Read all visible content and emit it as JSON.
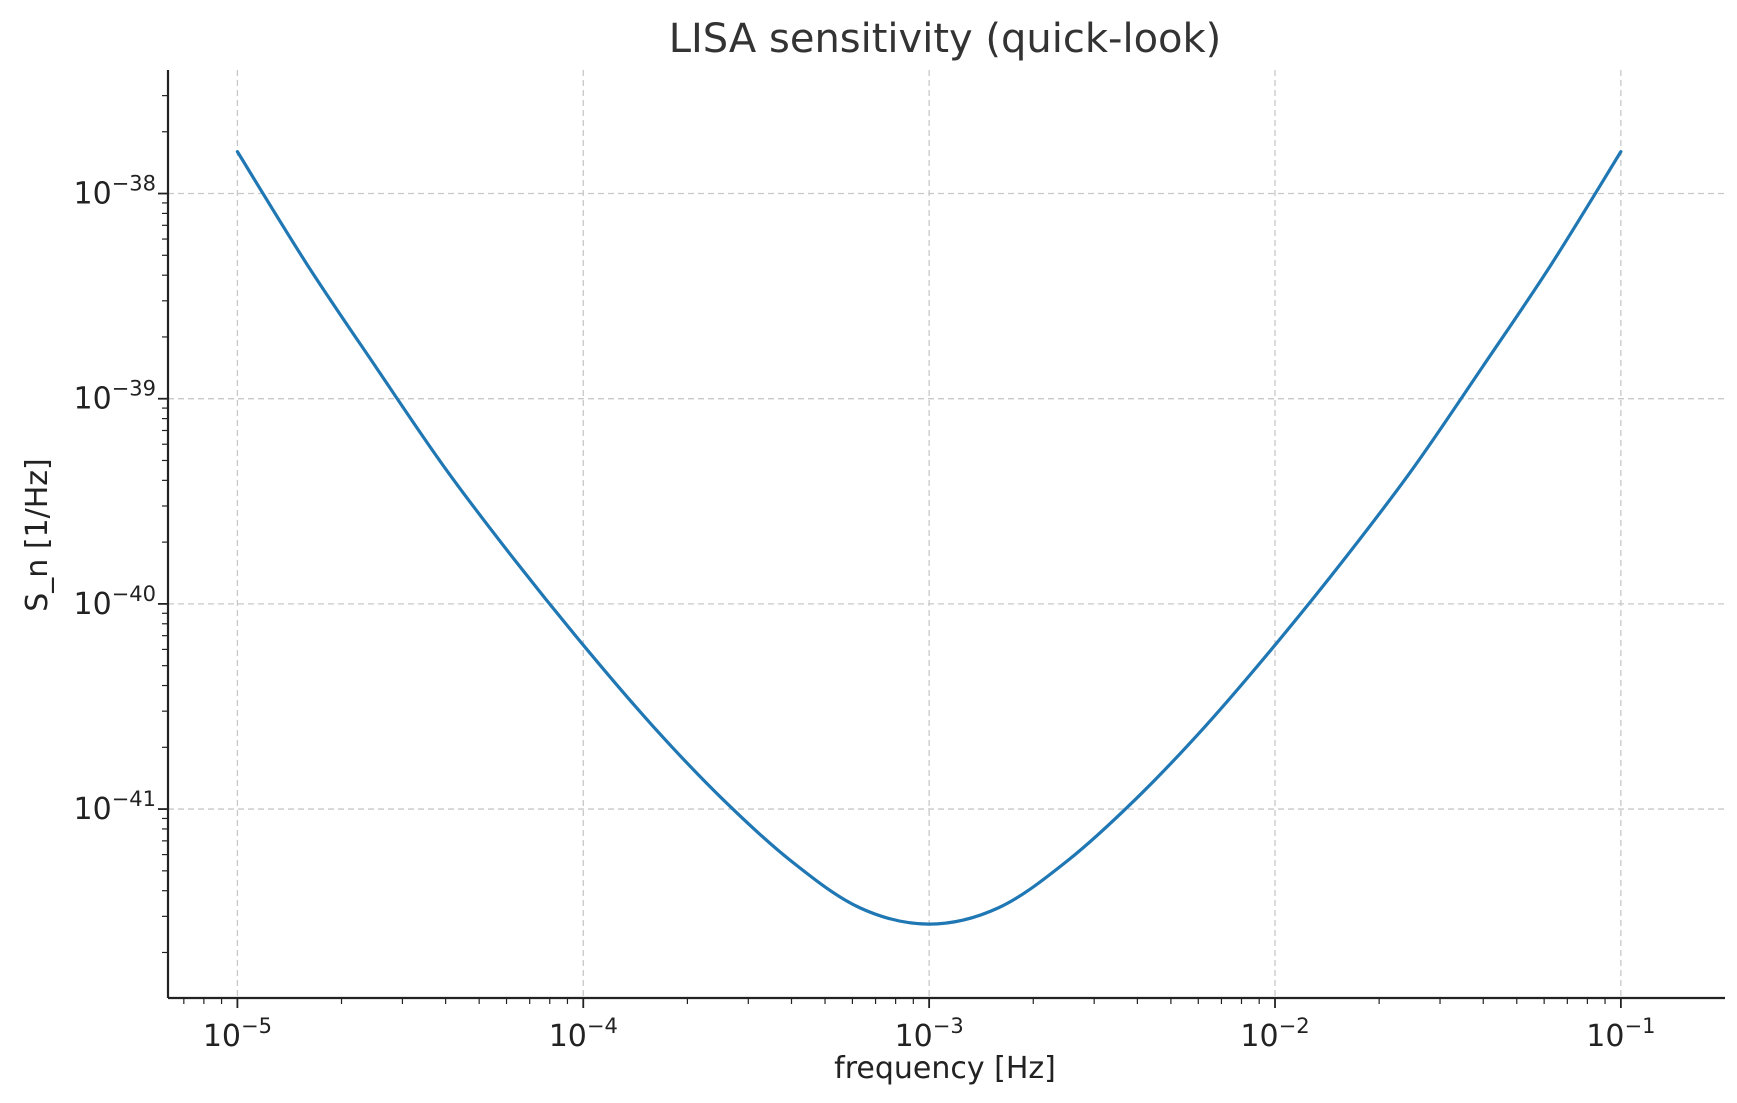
{
  "chart_data": {
    "type": "line",
    "title": "LISA sensitivity (quick-look)",
    "xlabel": "frequency [Hz]",
    "ylabel": "S_n [1/Hz]",
    "xscale": "log",
    "yscale": "log",
    "xlim": [
      6.3e-06,
      0.2
    ],
    "ylim": [
      1.2e-42,
      4e-38
    ],
    "grid": true,
    "x_ticks": [
      {
        "value": 1e-05,
        "base": "10",
        "exp": "−5"
      },
      {
        "value": 0.0001,
        "base": "10",
        "exp": "−4"
      },
      {
        "value": 0.001,
        "base": "10",
        "exp": "−3"
      },
      {
        "value": 0.01,
        "base": "10",
        "exp": "−2"
      },
      {
        "value": 0.1,
        "base": "10",
        "exp": "−1"
      }
    ],
    "y_ticks": [
      {
        "value": 1e-41,
        "base": "10",
        "exp": "−41"
      },
      {
        "value": 1e-40,
        "base": "10",
        "exp": "−40"
      },
      {
        "value": 1e-39,
        "base": "10",
        "exp": "−39"
      },
      {
        "value": 1e-38,
        "base": "10",
        "exp": "−38"
      }
    ],
    "series": [
      {
        "color": "#1f77b4",
        "x": [
          1e-05,
          1.585e-05,
          2.512e-05,
          3.981e-05,
          6.31e-05,
          0.0001,
          0.0001585,
          0.0002512,
          0.0003981,
          0.000631,
          0.001,
          0.001585,
          0.002512,
          0.003981,
          0.00631,
          0.01,
          0.01585,
          0.02512,
          0.03981,
          0.0631,
          0.1
        ],
        "y": [
          1.6e-38,
          4.55e-39,
          1.43e-39,
          4.6e-40,
          1.65e-40,
          6.3e-41,
          2.55e-41,
          1.13e-41,
          5.6e-42,
          3.3e-42,
          2.75e-42,
          3.3e-42,
          5.6e-42,
          1.13e-41,
          2.55e-41,
          6.3e-41,
          1.65e-40,
          4.6e-40,
          1.43e-39,
          4.55e-39,
          1.6e-38
        ]
      }
    ]
  }
}
